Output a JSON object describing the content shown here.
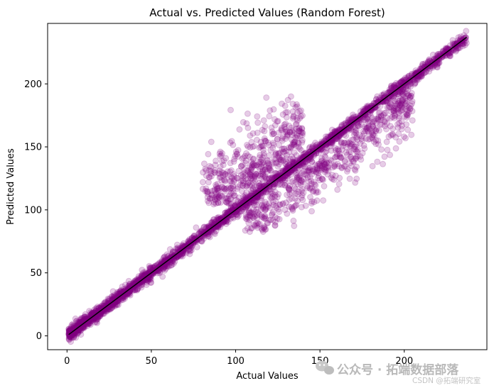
{
  "chart_data": {
    "type": "scatter",
    "title": "Actual vs. Predicted Values (Random Forest)",
    "xlabel": "Actual Values",
    "ylabel": "Predicted Values",
    "xlim": [
      -11.5,
      249
    ],
    "ylim": [
      -11,
      248
    ],
    "xticks": [
      0,
      50,
      100,
      150,
      200
    ],
    "yticks": [
      0,
      50,
      100,
      150,
      200
    ],
    "grid": false,
    "point_color": "#800080",
    "point_alpha": 0.2,
    "line_color": "#000000",
    "diagonal_line": {
      "x": [
        1,
        237
      ],
      "y": [
        1,
        237
      ]
    },
    "clusters": [
      {
        "x_range": [
          1,
          237
        ],
        "y_relation": "y ≈ x",
        "spread": 2.5,
        "count": 2600
      },
      {
        "x_range": [
          80,
          140
        ],
        "y_relation": "y above x",
        "y_range": [
          95,
          190
        ],
        "count": 450
      },
      {
        "x_range": [
          105,
          205
        ],
        "y_relation": "y below x",
        "y_range": [
          82,
          175
        ],
        "count": 550
      }
    ]
  },
  "watermark": {
    "icon": "wechat-icon",
    "text": "公众号 · 拓端数据部落",
    "subtext": "CSDN @拓端研究室"
  }
}
